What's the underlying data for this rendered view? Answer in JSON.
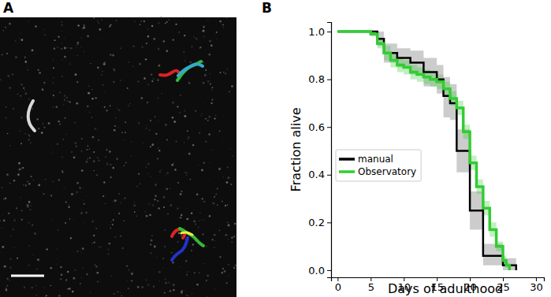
{
  "panel_labels": [
    "A",
    "B"
  ],
  "chart_data": {
    "type": "line",
    "x_label": "Days of adulthood",
    "y_label": "Fraction alive",
    "xlim": [
      -1,
      31.2
    ],
    "ylim": [
      -0.03,
      1.04
    ],
    "xticks": [
      0,
      5,
      10,
      15,
      20,
      25,
      30
    ],
    "yticks": [
      {
        "value": 0,
        "label": "0.0"
      },
      {
        "value": 0.2,
        "label": "0.2"
      },
      {
        "value": 0.4,
        "label": "0.4"
      },
      {
        "value": 0.6,
        "label": "0.6"
      },
      {
        "value": 0.8,
        "label": "0.8"
      },
      {
        "value": 1,
        "label": "1.0"
      }
    ],
    "legend": "center left",
    "line_style": "step",
    "series": [
      {
        "name": "manual",
        "color": "#000000",
        "x": [
          0,
          5,
          6,
          7,
          9,
          11,
          13,
          15,
          16,
          17,
          18,
          20,
          22,
          25,
          27
        ],
        "values": [
          1,
          1,
          0.97,
          0.91,
          0.89,
          0.87,
          0.83,
          0.8,
          0.73,
          0.7,
          0.5,
          0.25,
          0.06,
          0.02,
          0
        ],
        "lower": [
          1,
          1,
          0.94,
          0.87,
          0.85,
          0.82,
          0.77,
          0.74,
          0.64,
          0.63,
          0.41,
          0.17,
          0.02,
          0,
          0
        ],
        "upper": [
          1,
          1,
          1,
          0.95,
          0.93,
          0.92,
          0.89,
          0.86,
          0.81,
          0.78,
          0.59,
          0.33,
          0.11,
          0.05,
          0
        ]
      },
      {
        "name": "Observatory",
        "color": "#33cc33",
        "x": [
          0,
          4,
          5,
          6,
          7,
          8,
          9,
          10,
          11,
          12,
          13,
          14,
          15,
          16,
          17,
          18,
          19,
          20,
          21,
          22,
          23,
          24,
          25,
          25.5,
          26
        ],
        "values": [
          1,
          1,
          0.99,
          0.95,
          0.91,
          0.88,
          0.86,
          0.85,
          0.83,
          0.82,
          0.81,
          0.8,
          0.79,
          0.76,
          0.72,
          0.68,
          0.58,
          0.45,
          0.35,
          0.26,
          0.17,
          0.1,
          0.04,
          0.02,
          0
        ],
        "lower": [
          1,
          1,
          0.98,
          0.93,
          0.88,
          0.85,
          0.83,
          0.82,
          0.8,
          0.79,
          0.78,
          0.77,
          0.76,
          0.73,
          0.69,
          0.65,
          0.55,
          0.42,
          0.32,
          0.23,
          0.14,
          0.08,
          0.02,
          0.01,
          0
        ],
        "upper": [
          1,
          1,
          1,
          0.97,
          0.94,
          0.91,
          0.89,
          0.88,
          0.86,
          0.85,
          0.84,
          0.83,
          0.82,
          0.79,
          0.75,
          0.71,
          0.61,
          0.48,
          0.38,
          0.29,
          0.2,
          0.12,
          0.06,
          0.03,
          0
        ]
      }
    ]
  }
}
